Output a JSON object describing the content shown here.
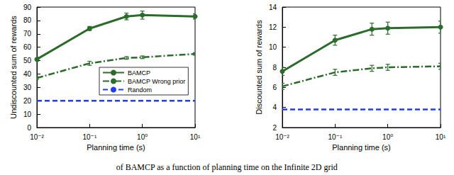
{
  "caption": "of BAMCP as a function of planning time on the Infinite 2D grid",
  "chart_data": [
    {
      "type": "line",
      "log": "x",
      "grid": false,
      "legend": "right",
      "x_label": "Planning time (s)",
      "y_label": "Undiscounted sum of rewards",
      "x": [
        0.01,
        0.1,
        0.5,
        1,
        10
      ],
      "xlim": [
        0.01,
        10
      ],
      "xticks": [
        {
          "value": 0.01,
          "label": "10⁻²"
        },
        {
          "value": 0.1,
          "label": "10⁻¹"
        },
        {
          "value": 1,
          "label": "10⁰"
        },
        {
          "value": 10,
          "label": "10¹"
        }
      ],
      "ylim": [
        0,
        90
      ],
      "yticks": [
        0,
        10,
        20,
        30,
        40,
        50,
        60,
        70,
        80,
        90
      ],
      "series": [
        {
          "name": "BAMCP",
          "color": "#2b6b2b",
          "marker": "circle",
          "line_style": "solid",
          "values": [
            51,
            74,
            83,
            84,
            83
          ],
          "errors": [
            1.5,
            1.5,
            2.5,
            3,
            2
          ]
        },
        {
          "name": "BAMCP Wrong prior",
          "color": "#2b6b2b",
          "line_style": "dashdot",
          "values": [
            37,
            48,
            52,
            52.5,
            55
          ],
          "errors": [
            1,
            1.5,
            1,
            1,
            1
          ]
        },
        {
          "name": "Random",
          "color": "#1f3cff",
          "line_style": "dashed",
          "values": [
            20,
            20,
            20,
            20,
            20
          ]
        }
      ]
    },
    {
      "type": "line",
      "log": "x",
      "grid": false,
      "x_label": "Planning time (s)",
      "y_label": "Discounted sum of rewards",
      "x": [
        0.01,
        0.1,
        0.5,
        1,
        10
      ],
      "xlim": [
        0.01,
        10
      ],
      "xticks": [
        {
          "value": 0.01,
          "label": "10⁻²"
        },
        {
          "value": 0.1,
          "label": "10⁻¹"
        },
        {
          "value": 1,
          "label": "10⁰"
        },
        {
          "value": 10,
          "label": "10¹"
        }
      ],
      "ylim": [
        2,
        14
      ],
      "yticks": [
        2,
        4,
        6,
        8,
        10,
        12,
        14
      ],
      "series": [
        {
          "name": "BAMCP",
          "color": "#2b6b2b",
          "marker": "circle",
          "line_style": "solid",
          "values": [
            7.6,
            10.7,
            11.8,
            11.9,
            12.0
          ],
          "errors": [
            0.4,
            0.5,
            0.6,
            0.6,
            0.6
          ]
        },
        {
          "name": "BAMCP Wrong prior",
          "color": "#2b6b2b",
          "line_style": "dashdot",
          "values": [
            6.1,
            7.5,
            7.9,
            8.0,
            8.1
          ],
          "errors": [
            0.3,
            0.3,
            0.3,
            0.3,
            0.3
          ]
        },
        {
          "name": "Random",
          "color": "#1f3cff",
          "line_style": "dashed",
          "values": [
            3.8,
            3.8,
            3.8,
            3.8,
            3.8
          ]
        }
      ]
    }
  ]
}
